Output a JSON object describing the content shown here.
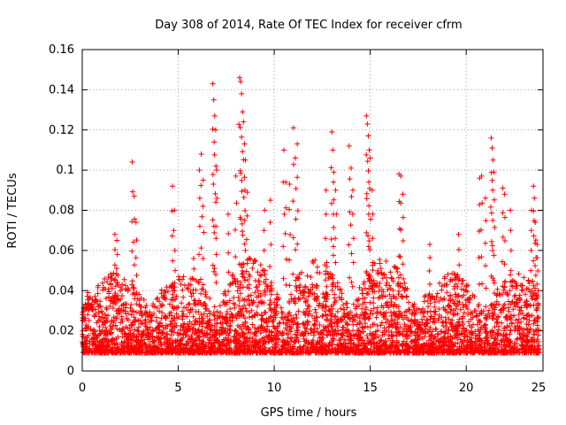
{
  "chart_data": {
    "type": "scatter",
    "title": "Day 308 of 2014, Rate Of TEC Index for receiver cfrm",
    "xlabel": "GPS time / hours",
    "ylabel": "ROTI / TECUs",
    "xlim": [
      0,
      24
    ],
    "ylim": [
      0,
      0.16
    ],
    "x_ticks": [
      "0",
      "5",
      "10",
      "15",
      "20",
      "25"
    ],
    "x_tick_values": [
      0,
      5,
      10,
      15,
      20,
      25
    ],
    "y_ticks": [
      "0",
      "0.02",
      "0.04",
      "0.06",
      "0.08",
      "0.1",
      "0.12",
      "0.14",
      "0.16"
    ],
    "y_tick_values": [
      0,
      0.02,
      0.04,
      0.06,
      0.08,
      0.1,
      0.12,
      0.14,
      0.16
    ],
    "grid": true,
    "marker": "+",
    "series_color": "#ff0000",
    "series": [
      {
        "name": "ROTI",
        "points": [
          [
            0.3,
            0.039
          ],
          [
            0.5,
            0.033
          ],
          [
            1.7,
            0.068
          ],
          [
            1.8,
            0.065
          ],
          [
            2.6,
            0.104
          ],
          [
            2.7,
            0.087
          ],
          [
            2.8,
            0.074
          ],
          [
            4.7,
            0.092
          ],
          [
            4.8,
            0.08
          ],
          [
            5.8,
            0.056
          ],
          [
            6.1,
            0.1
          ],
          [
            6.2,
            0.108
          ],
          [
            6.3,
            0.095
          ],
          [
            6.8,
            0.143
          ],
          [
            6.85,
            0.135
          ],
          [
            6.9,
            0.127
          ],
          [
            6.95,
            0.12
          ],
          [
            7.0,
            0.1
          ],
          [
            7.6,
            0.078
          ],
          [
            8.0,
            0.097
          ],
          [
            8.2,
            0.146
          ],
          [
            8.25,
            0.144
          ],
          [
            8.3,
            0.138
          ],
          [
            8.35,
            0.129
          ],
          [
            8.4,
            0.124
          ],
          [
            8.45,
            0.113
          ],
          [
            8.5,
            0.105
          ],
          [
            8.6,
            0.089
          ],
          [
            9.5,
            0.08
          ],
          [
            9.8,
            0.085
          ],
          [
            10.5,
            0.11
          ],
          [
            10.6,
            0.094
          ],
          [
            10.8,
            0.093
          ],
          [
            11.0,
            0.121
          ],
          [
            11.1,
            0.106
          ],
          [
            11.2,
            0.113
          ],
          [
            12.7,
            0.09
          ],
          [
            13.0,
            0.119
          ],
          [
            13.05,
            0.11
          ],
          [
            13.1,
            0.099
          ],
          [
            13.2,
            0.09
          ],
          [
            13.9,
            0.112
          ],
          [
            14.0,
            0.101
          ],
          [
            14.1,
            0.09
          ],
          [
            14.8,
            0.127
          ],
          [
            14.85,
            0.123
          ],
          [
            14.9,
            0.117
          ],
          [
            14.95,
            0.11
          ],
          [
            15.0,
            0.106
          ],
          [
            15.1,
            0.09
          ],
          [
            16.5,
            0.098
          ],
          [
            16.6,
            0.097
          ],
          [
            16.7,
            0.088
          ],
          [
            18.1,
            0.063
          ],
          [
            19.6,
            0.068
          ],
          [
            20.7,
            0.096
          ],
          [
            20.8,
            0.097
          ],
          [
            21.0,
            0.086
          ],
          [
            21.3,
            0.116
          ],
          [
            21.35,
            0.111
          ],
          [
            21.4,
            0.105
          ],
          [
            21.45,
            0.099
          ],
          [
            21.9,
            0.091
          ],
          [
            22.0,
            0.088
          ],
          [
            22.3,
            0.08
          ],
          [
            23.4,
            0.08
          ],
          [
            23.5,
            0.092
          ],
          [
            23.55,
            0.086
          ],
          [
            23.6,
            0.074
          ],
          [
            23.7,
            0.063
          ]
        ],
        "dense_band": {
          "x_range": [
            0,
            23.8
          ],
          "y_range": [
            0.005,
            0.045
          ],
          "note": "thousands of overlapping samples forming a solid band, mostly 0.008-0.03"
        }
      }
    ]
  }
}
